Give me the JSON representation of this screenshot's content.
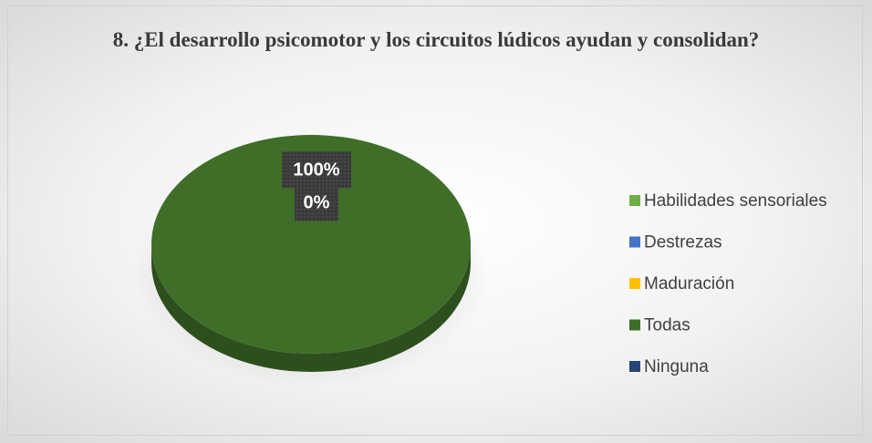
{
  "chart_data": {
    "type": "pie",
    "title": "8. ¿El desarrollo psicomotor y los circuitos lúdicos ayudan y consolidan?",
    "categories": [
      "Habilidades sensoriales",
      "Destrezas",
      "Maduración",
      "Todas",
      "Ninguna"
    ],
    "values": [
      0,
      0,
      0,
      100,
      0
    ],
    "value_labels": [
      "0%",
      "0%",
      "0%",
      "100%",
      "0%"
    ],
    "colors": [
      "#70ad47",
      "#4472c4",
      "#ffc000",
      "#3f6e28",
      "#264478"
    ],
    "legend": "right"
  }
}
